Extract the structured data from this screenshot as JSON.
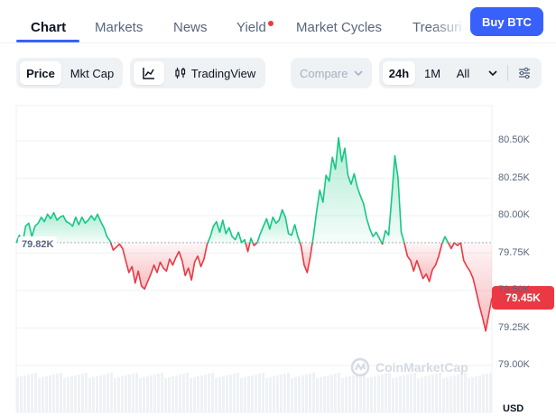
{
  "tabs": [
    {
      "label": "Chart",
      "active": true
    },
    {
      "label": "Markets"
    },
    {
      "label": "News"
    },
    {
      "label": "Yield",
      "has_dot": true
    },
    {
      "label": "Market Cycles"
    },
    {
      "label": "Treasuri"
    }
  ],
  "buy_button": "Buy BTC",
  "toolbar": {
    "price_label": "Price",
    "mktcap_label": "Mkt Cap",
    "line_icon": "line-chart-icon",
    "tradingview_label": "TradingView",
    "compare_placeholder": "Compare",
    "ranges": [
      "24h",
      "1M",
      "All"
    ],
    "selected_range": "24h",
    "settings_icon": "sliders-icon"
  },
  "colors": {
    "accent": "#3861fb",
    "up": "#16c784",
    "down": "#ea3943"
  },
  "chart_data": {
    "type": "line",
    "currency_label": "USD",
    "y_ticks": [
      "80.50K",
      "80.25K",
      "80.00K",
      "79.75K",
      "79.50K",
      "79.25K",
      "79.00K"
    ],
    "ylim": [
      78.95,
      80.75
    ],
    "reference_label": "79.82K",
    "reference_value": 79.82,
    "current_label": "79.45K",
    "current_value": 79.45,
    "watermark": "CoinMarketCap",
    "grid": true,
    "series": [
      {
        "values": [
          79.82,
          79.87,
          79.81,
          79.93,
          79.95,
          79.86,
          79.93,
          79.95,
          79.99,
          79.96,
          80.01,
          79.98,
          80.02,
          79.97,
          79.99,
          80.0,
          79.96,
          79.95,
          79.93,
          79.99,
          79.94,
          79.99,
          79.95,
          79.97,
          80.0,
          79.97,
          80.01,
          79.96,
          79.92,
          79.86,
          79.83,
          79.77,
          79.79,
          79.81,
          79.78,
          79.7,
          79.62,
          79.66,
          79.55,
          79.63,
          79.53,
          79.51,
          79.56,
          79.61,
          79.67,
          79.62,
          79.69,
          79.65,
          79.63,
          79.71,
          79.67,
          79.72,
          79.76,
          79.7,
          79.6,
          79.65,
          79.57,
          79.69,
          79.73,
          79.66,
          79.71,
          79.81,
          79.86,
          79.93,
          79.96,
          79.89,
          79.97,
          79.88,
          79.92,
          79.86,
          79.84,
          79.89,
          79.82,
          79.84,
          79.76,
          79.85,
          79.8,
          79.82,
          79.88,
          79.93,
          79.98,
          79.91,
          79.99,
          79.95,
          79.97,
          80.04,
          79.99,
          79.88,
          79.87,
          79.94,
          79.86,
          79.8,
          79.67,
          79.62,
          79.73,
          79.87,
          80.03,
          80.17,
          80.09,
          80.27,
          80.23,
          80.39,
          80.31,
          80.52,
          80.36,
          80.45,
          80.27,
          80.21,
          80.28,
          80.19,
          80.13,
          80.08,
          79.98,
          79.91,
          79.86,
          79.89,
          79.85,
          79.81,
          79.9,
          79.87,
          80.13,
          80.4,
          80.25,
          79.89,
          79.82,
          79.73,
          79.7,
          79.63,
          79.7,
          79.64,
          79.58,
          79.61,
          79.56,
          79.64,
          79.67,
          79.73,
          79.81,
          79.86,
          79.82,
          79.78,
          79.82,
          79.8,
          79.82,
          79.7,
          79.66,
          79.63,
          79.58,
          79.49,
          79.4,
          79.32,
          79.23,
          79.34,
          79.45
        ]
      }
    ]
  }
}
